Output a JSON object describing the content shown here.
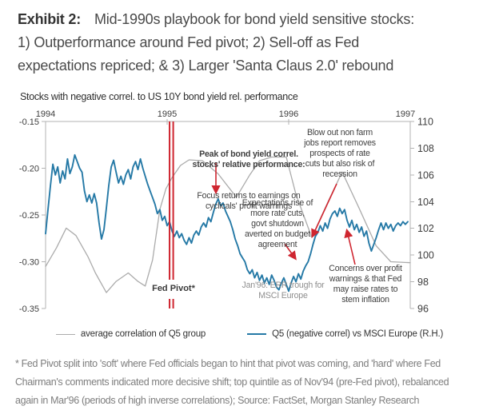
{
  "header": {
    "exhibit_label": "Exhibit 2:",
    "title": "Mid-1990s playbook for bond yield sensitive stocks:\n1) Outperformance around Fed pivot; 2) Sell-off as Fed\nexpectations repriced; & 3) Larger 'Santa Claus 2.0' rebound"
  },
  "chart": {
    "subtitle": "Stocks with negative correl. to US 10Y bond yield rel. performance",
    "fed_pivot_label": "Fed Pivot*",
    "annotations": {
      "peak_bold": "Peak of bond yield correl.\nstocks' relative performance:",
      "peak_rest": "Focus returns to earnings on\ncyclicals' profit warnings",
      "blowout": "Blow out non farm\njobs report removes\nprospects of rate\ncuts but also risk of\nrecession",
      "expectations": "Expectations rise of\nmore rate cuts,\ngovt shutdown\naverted on budget\nagreement",
      "concerns": "Concerns over profit\nwarnings & that Fed\nmay raise rates to\nstem inflation",
      "jan96": "Jan'96: ERR trough for\nMSCI Europe"
    },
    "legend": [
      {
        "label": "average correlation of Q5 group",
        "color": "#ababab"
      },
      {
        "label": "Q5 (negative correl) vs MSCI Europe (R.H.)",
        "color": "#2579a6"
      }
    ]
  },
  "chart_data": {
    "type": "line",
    "title": "Stocks with negative correl. to US 10Y bond yield rel. performance",
    "grid": false,
    "legend_position": "bottom",
    "x_axis": {
      "labels": [
        "1994",
        "1995",
        "1996",
        "1997"
      ],
      "values": [
        1994,
        1995,
        1996,
        1997
      ],
      "range": [
        1994,
        1997
      ],
      "ticks_at": [
        1995,
        1996
      ]
    },
    "left_axis": {
      "tick_labels": [
        "-0.15",
        "-0.20",
        "-0.25",
        "-0.30",
        "-0.35"
      ],
      "tick_values": [
        -0.15,
        -0.2,
        -0.25,
        -0.3,
        -0.35
      ],
      "range": [
        -0.35,
        -0.15
      ]
    },
    "right_axis": {
      "tick_labels": [
        "110",
        "108",
        "106",
        "104",
        "102",
        "100",
        "98",
        "96"
      ],
      "tick_values": [
        110,
        108,
        106,
        104,
        102,
        100,
        98,
        96
      ],
      "range": [
        96,
        110
      ]
    },
    "fed_pivot": {
      "label": "Fed Pivot*",
      "x_years": [
        1995.02,
        1995.05
      ],
      "color": "#cf2630"
    },
    "series": [
      {
        "name": "average correlation of Q5 group",
        "axis": "left",
        "color": "#ababab",
        "points": [
          [
            1994.0,
            -0.305
          ],
          [
            1994.09,
            -0.285
          ],
          [
            1994.17,
            -0.264
          ],
          [
            1994.25,
            -0.272
          ],
          [
            1994.35,
            -0.295
          ],
          [
            1994.41,
            -0.312
          ],
          [
            1994.5,
            -0.333
          ],
          [
            1994.58,
            -0.321
          ],
          [
            1994.68,
            -0.312
          ],
          [
            1994.76,
            -0.321
          ],
          [
            1994.82,
            -0.326
          ],
          [
            1994.88,
            -0.298
          ],
          [
            1994.94,
            -0.244
          ],
          [
            1994.99,
            -0.222
          ],
          [
            1995.04,
            -0.21
          ],
          [
            1995.11,
            -0.197
          ],
          [
            1995.18,
            -0.191
          ],
          [
            1995.29,
            -0.192
          ],
          [
            1995.42,
            -0.206
          ],
          [
            1995.57,
            -0.231
          ],
          [
            1995.68,
            -0.207
          ],
          [
            1995.76,
            -0.192
          ],
          [
            1995.86,
            -0.188
          ],
          [
            1995.98,
            -0.188
          ],
          [
            1996.06,
            -0.228
          ],
          [
            1996.19,
            -0.274
          ],
          [
            1996.32,
            -0.237
          ],
          [
            1996.44,
            -0.204
          ],
          [
            1996.58,
            -0.243
          ],
          [
            1996.72,
            -0.283
          ],
          [
            1996.84,
            -0.3
          ],
          [
            1997.0,
            -0.301
          ]
        ]
      },
      {
        "name": "Q5 (negative correl) vs MSCI Europe (R.H.)",
        "axis": "right",
        "color": "#2579a6",
        "points": [
          [
            1994.0,
            101.6
          ],
          [
            1994.02,
            103.4
          ],
          [
            1994.04,
            105.2
          ],
          [
            1994.06,
            106.8
          ],
          [
            1994.08,
            106.0
          ],
          [
            1994.1,
            106.6
          ],
          [
            1994.12,
            105.4
          ],
          [
            1994.14,
            106.3
          ],
          [
            1994.16,
            105.7
          ],
          [
            1994.18,
            107.2
          ],
          [
            1994.2,
            106.1
          ],
          [
            1994.22,
            106.6
          ],
          [
            1994.24,
            107.5
          ],
          [
            1994.26,
            107.0
          ],
          [
            1994.28,
            106.5
          ],
          [
            1994.3,
            106.2
          ],
          [
            1994.32,
            104.8
          ],
          [
            1994.34,
            104.0
          ],
          [
            1994.36,
            104.5
          ],
          [
            1994.38,
            103.9
          ],
          [
            1994.4,
            104.6
          ],
          [
            1994.42,
            103.9
          ],
          [
            1994.44,
            102.4
          ],
          [
            1994.46,
            101.2
          ],
          [
            1994.48,
            101.9
          ],
          [
            1994.5,
            103.5
          ],
          [
            1994.52,
            105.2
          ],
          [
            1994.54,
            106.6
          ],
          [
            1994.56,
            107.1
          ],
          [
            1994.58,
            106.2
          ],
          [
            1994.6,
            105.4
          ],
          [
            1994.62,
            105.9
          ],
          [
            1994.64,
            105.3
          ],
          [
            1994.66,
            106.0
          ],
          [
            1994.68,
            106.4
          ],
          [
            1994.7,
            105.7
          ],
          [
            1994.72,
            106.6
          ],
          [
            1994.74,
            107.0
          ],
          [
            1994.76,
            106.4
          ],
          [
            1994.78,
            107.2
          ],
          [
            1994.8,
            106.5
          ],
          [
            1994.82,
            105.9
          ],
          [
            1994.84,
            105.3
          ],
          [
            1994.86,
            104.8
          ],
          [
            1994.88,
            104.3
          ],
          [
            1994.9,
            103.8
          ],
          [
            1994.92,
            103.1
          ],
          [
            1994.94,
            103.4
          ],
          [
            1994.96,
            102.6
          ],
          [
            1994.98,
            102.9
          ],
          [
            1995.0,
            102.2
          ],
          [
            1995.02,
            102.5
          ],
          [
            1995.04,
            101.8
          ],
          [
            1995.06,
            101.4
          ],
          [
            1995.08,
            101.8
          ],
          [
            1995.1,
            101.3
          ],
          [
            1995.12,
            101.6
          ],
          [
            1995.14,
            101.1
          ],
          [
            1995.16,
            100.8
          ],
          [
            1995.18,
            101.3
          ],
          [
            1995.2,
            100.9
          ],
          [
            1995.22,
            101.5
          ],
          [
            1995.24,
            101.8
          ],
          [
            1995.26,
            101.5
          ],
          [
            1995.28,
            102.1
          ],
          [
            1995.3,
            102.4
          ],
          [
            1995.32,
            102.1
          ],
          [
            1995.34,
            102.8
          ],
          [
            1995.36,
            102.5
          ],
          [
            1995.38,
            103.2
          ],
          [
            1995.4,
            103.8
          ],
          [
            1995.42,
            104.2
          ],
          [
            1995.44,
            103.7
          ],
          [
            1995.46,
            103.9
          ],
          [
            1995.48,
            103.3
          ],
          [
            1995.5,
            102.9
          ],
          [
            1995.52,
            102.5
          ],
          [
            1995.54,
            101.9
          ],
          [
            1995.56,
            101.2
          ],
          [
            1995.58,
            100.7
          ],
          [
            1995.6,
            100.1
          ],
          [
            1995.62,
            99.8
          ],
          [
            1995.64,
            99.5
          ],
          [
            1995.66,
            98.9
          ],
          [
            1995.68,
            98.6
          ],
          [
            1995.7,
            98.9
          ],
          [
            1995.72,
            98.3
          ],
          [
            1995.74,
            98.7
          ],
          [
            1995.76,
            98.1
          ],
          [
            1995.78,
            98.5
          ],
          [
            1995.8,
            97.9
          ],
          [
            1995.82,
            98.3
          ],
          [
            1995.84,
            97.8
          ],
          [
            1995.86,
            98.5
          ],
          [
            1995.88,
            98.1
          ],
          [
            1995.9,
            97.6
          ],
          [
            1995.92,
            97.4
          ],
          [
            1995.94,
            97.9
          ],
          [
            1995.96,
            98.3
          ],
          [
            1995.98,
            97.8
          ],
          [
            1996.0,
            97.3
          ],
          [
            1996.02,
            97.9
          ],
          [
            1996.04,
            98.4
          ],
          [
            1996.06,
            98.0
          ],
          [
            1996.08,
            98.6
          ],
          [
            1996.1,
            98.2
          ],
          [
            1996.12,
            98.8
          ],
          [
            1996.14,
            99.2
          ],
          [
            1996.16,
            99.5
          ],
          [
            1996.18,
            100.1
          ],
          [
            1996.2,
            100.8
          ],
          [
            1996.22,
            101.4
          ],
          [
            1996.24,
            101.7
          ],
          [
            1996.26,
            102.2
          ],
          [
            1996.28,
            101.8
          ],
          [
            1996.3,
            102.4
          ],
          [
            1996.32,
            102.0
          ],
          [
            1996.34,
            102.7
          ],
          [
            1996.36,
            103.1
          ],
          [
            1996.38,
            103.3
          ],
          [
            1996.4,
            102.9
          ],
          [
            1996.42,
            103.5
          ],
          [
            1996.44,
            103.1
          ],
          [
            1996.46,
            103.4
          ],
          [
            1996.48,
            102.6
          ],
          [
            1996.5,
            102.1
          ],
          [
            1996.52,
            102.6
          ],
          [
            1996.54,
            101.9
          ],
          [
            1996.56,
            102.3
          ],
          [
            1996.58,
            101.7
          ],
          [
            1996.6,
            102.1
          ],
          [
            1996.62,
            101.4
          ],
          [
            1996.64,
            101.8
          ],
          [
            1996.66,
            100.9
          ],
          [
            1996.68,
            100.3
          ],
          [
            1996.7,
            100.8
          ],
          [
            1996.72,
            101.3
          ],
          [
            1996.74,
            101.9
          ],
          [
            1996.76,
            102.4
          ],
          [
            1996.78,
            101.9
          ],
          [
            1996.8,
            102.4
          ],
          [
            1996.82,
            102.0
          ],
          [
            1996.84,
            102.3
          ],
          [
            1996.86,
            101.8
          ],
          [
            1996.88,
            102.2
          ],
          [
            1996.9,
            102.4
          ],
          [
            1996.92,
            102.2
          ],
          [
            1996.94,
            102.5
          ],
          [
            1996.96,
            102.3
          ],
          [
            1996.98,
            102.5
          ]
        ]
      }
    ]
  },
  "footnote": "* Fed Pivot split into 'soft' where Fed officials began to hint that pivot was coming, and 'hard' where Fed\nChairman's comments indicated more decisive shift; top quintile as of Nov'94 (pre-Fed pivot), rebalanced\nagain in Mar'96 (periods of high inverse correlations); Source: FactSet, Morgan Stanley Research"
}
